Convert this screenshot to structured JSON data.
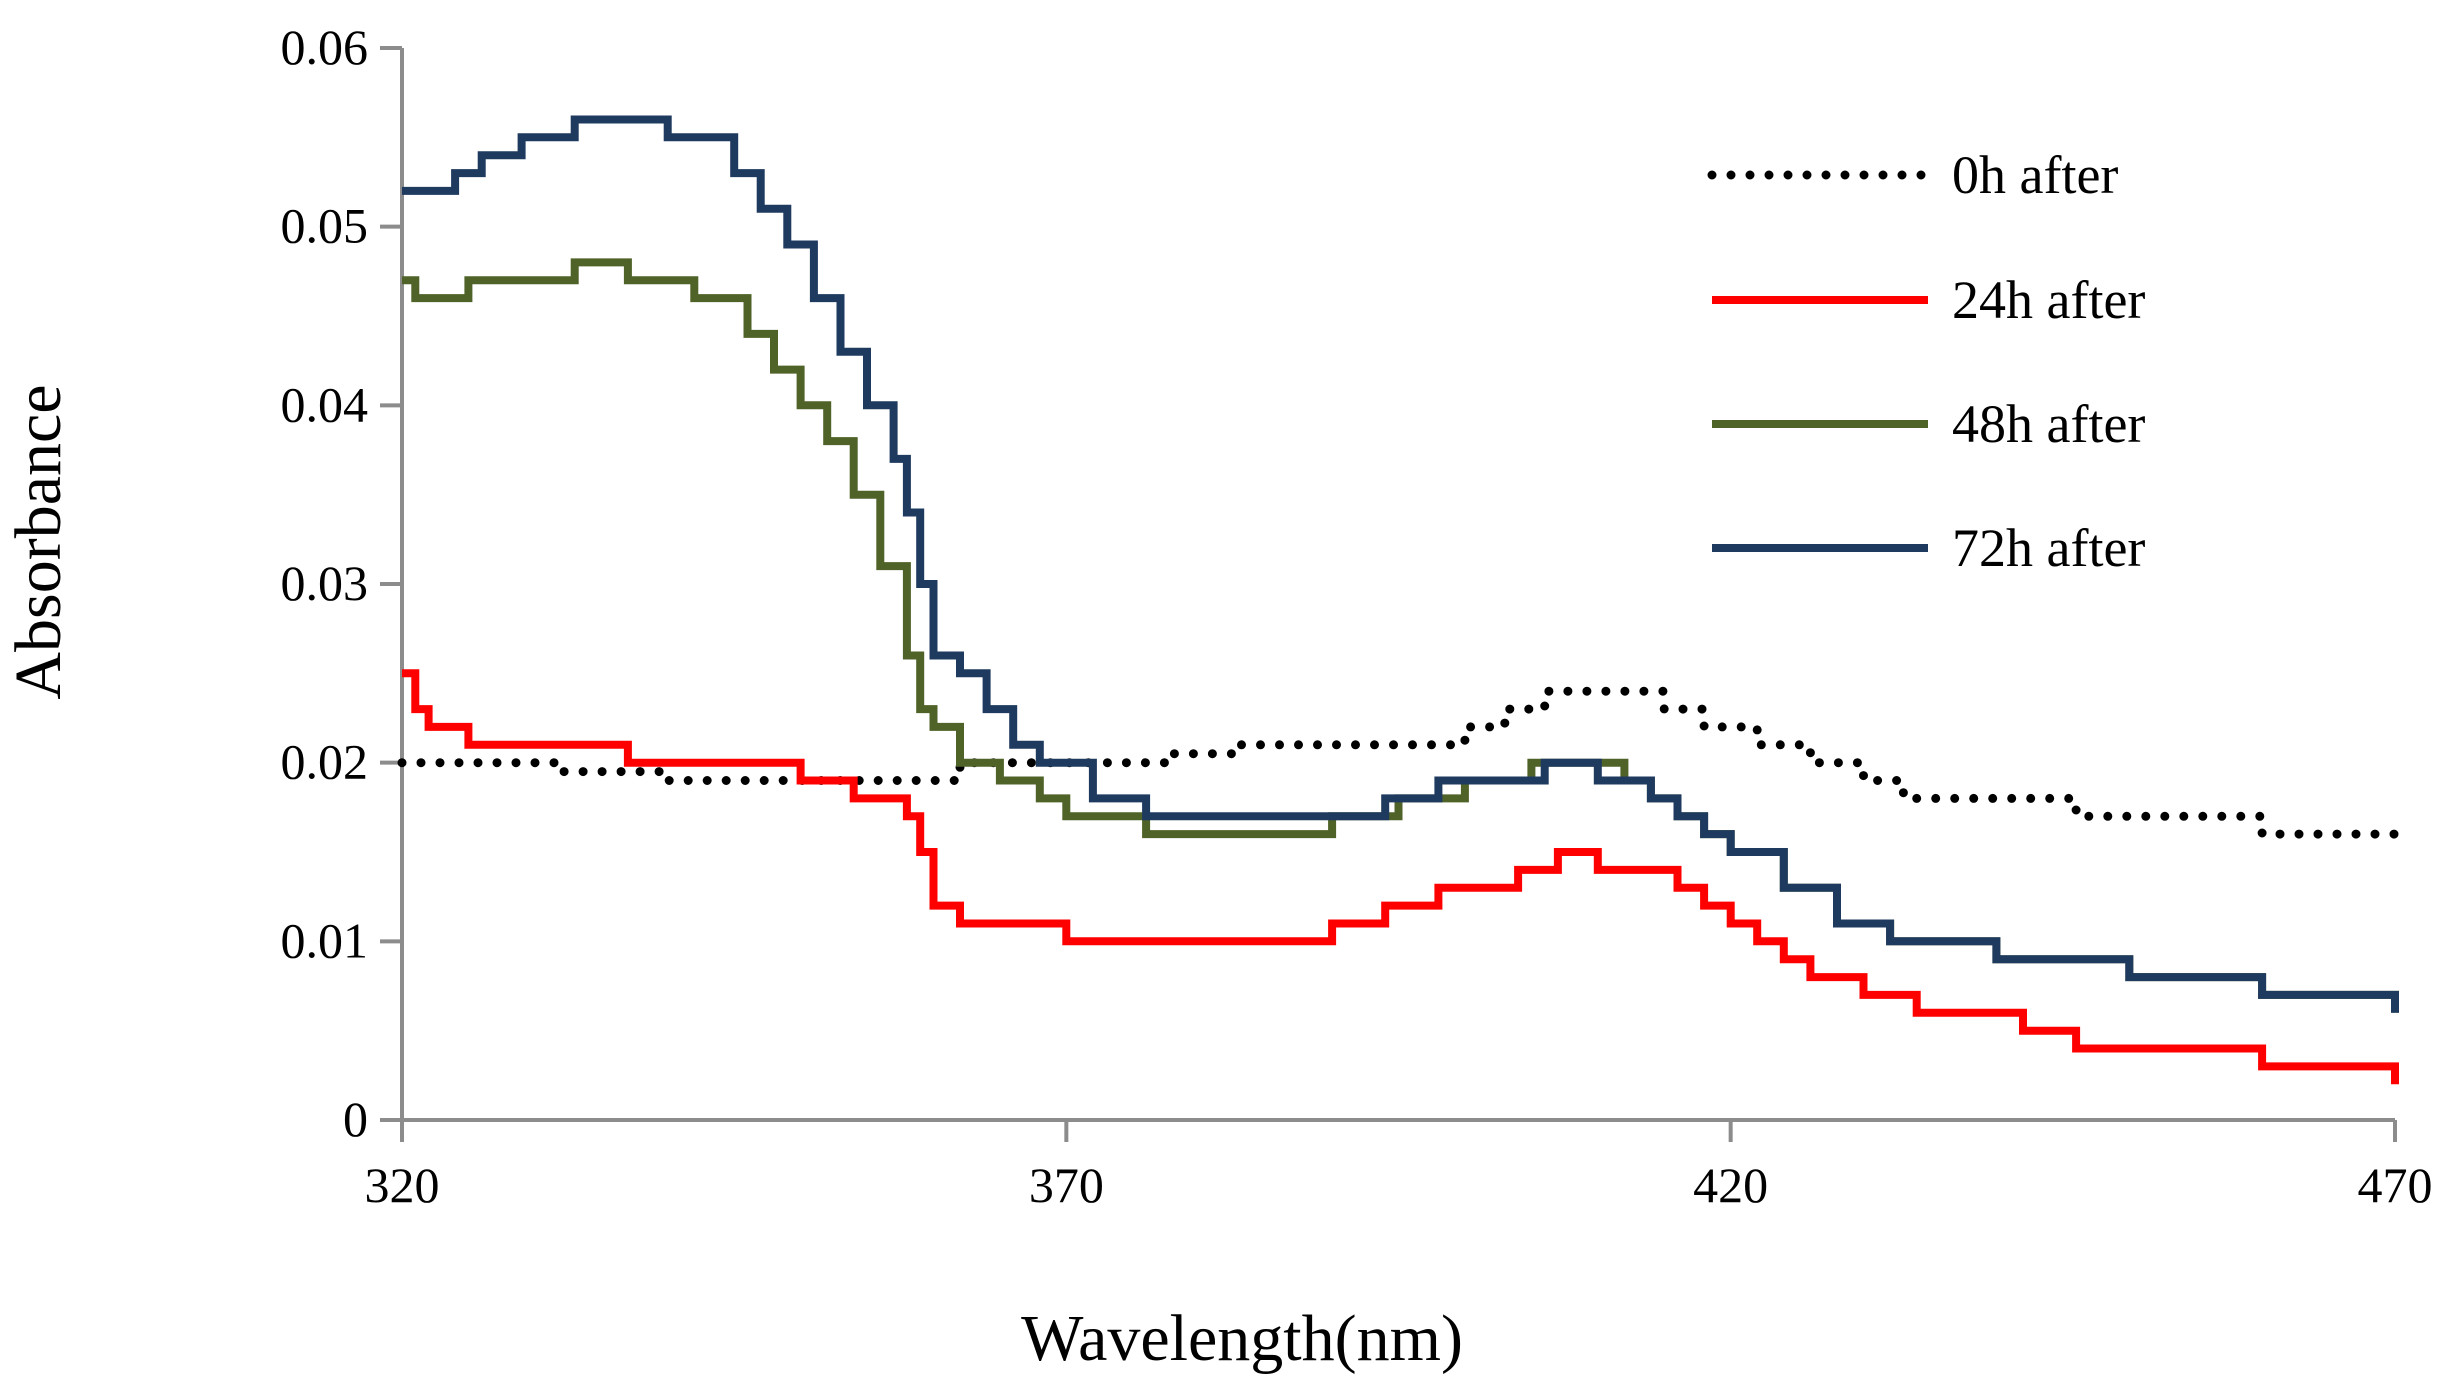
{
  "chart_data": {
    "type": "line",
    "title": "",
    "xlabel": "Wavelength(nm)",
    "ylabel": "Absorbance",
    "xlim": [
      320,
      470
    ],
    "ylim": [
      0,
      0.06
    ],
    "xticks": [
      320,
      370,
      420,
      470
    ],
    "xtick_labels": [
      "320",
      "370",
      "420",
      "470"
    ],
    "yticks": [
      0,
      0.01,
      0.02,
      0.03,
      0.04,
      0.05,
      0.06
    ],
    "ytick_labels": [
      "0",
      "0.01",
      "0.02",
      "0.03",
      "0.04",
      "0.05",
      "0.06"
    ],
    "grid": false,
    "legend_position": "top-right",
    "series": [
      {
        "name": "0h after",
        "color": "#000000",
        "style": "dotted",
        "x": [
          320,
          330,
          332,
          335,
          340,
          345,
          352,
          356,
          360,
          362,
          366,
          370,
          374,
          378,
          383,
          388,
          393,
          397,
          400,
          403,
          406,
          410,
          415,
          418,
          422,
          426,
          430,
          433,
          437,
          441,
          446,
          450,
          455,
          460,
          465,
          470
        ],
        "y": [
          0.02,
          0.02,
          0.0195,
          0.0195,
          0.019,
          0.019,
          0.019,
          0.019,
          0.019,
          0.02,
          0.02,
          0.02,
          0.02,
          0.0205,
          0.021,
          0.021,
          0.021,
          0.021,
          0.022,
          0.023,
          0.024,
          0.024,
          0.023,
          0.022,
          0.021,
          0.02,
          0.019,
          0.018,
          0.018,
          0.018,
          0.017,
          0.017,
          0.017,
          0.016,
          0.016,
          0.016
        ]
      },
      {
        "name": "24h after",
        "color": "#ff0000",
        "style": "solid",
        "x": [
          320,
          321,
          322,
          325,
          330,
          337,
          343,
          350,
          354,
          358,
          359,
          360,
          362,
          365,
          370,
          375,
          380,
          385,
          390,
          394,
          398,
          401,
          404,
          407,
          410,
          413,
          416,
          418,
          420,
          422,
          424,
          426,
          430,
          434,
          438,
          442,
          446,
          451,
          456,
          460,
          465,
          470
        ],
        "y": [
          0.025,
          0.023,
          0.022,
          0.021,
          0.021,
          0.02,
          0.02,
          0.019,
          0.018,
          0.017,
          0.015,
          0.012,
          0.011,
          0.011,
          0.01,
          0.01,
          0.01,
          0.01,
          0.011,
          0.012,
          0.013,
          0.013,
          0.014,
          0.015,
          0.014,
          0.014,
          0.013,
          0.012,
          0.011,
          0.01,
          0.009,
          0.008,
          0.007,
          0.006,
          0.006,
          0.005,
          0.004,
          0.004,
          0.004,
          0.003,
          0.003,
          0.002
        ]
      },
      {
        "name": "48h after",
        "color": "#4f6228",
        "style": "solid",
        "x": [
          320,
          321,
          325,
          328,
          333,
          337,
          342,
          346,
          348,
          350,
          352,
          354,
          356,
          358,
          359,
          360,
          362,
          365,
          368,
          370,
          372,
          376,
          380,
          385,
          390,
          395,
          400,
          405,
          408,
          410,
          412,
          414,
          416,
          418,
          420,
          424,
          428,
          432,
          436,
          440,
          445,
          450,
          455,
          460,
          465,
          470
        ],
        "y": [
          0.047,
          0.046,
          0.047,
          0.047,
          0.048,
          0.047,
          0.046,
          0.044,
          0.042,
          0.04,
          0.038,
          0.035,
          0.031,
          0.026,
          0.023,
          0.022,
          0.02,
          0.019,
          0.018,
          0.017,
          0.017,
          0.016,
          0.016,
          0.016,
          0.017,
          0.018,
          0.019,
          0.02,
          0.02,
          0.02,
          0.019,
          0.018,
          0.017,
          0.016,
          0.015,
          0.013,
          0.011,
          0.01,
          0.01,
          0.009,
          0.009,
          0.008,
          0.008,
          0.007,
          0.007,
          0.006
        ]
      },
      {
        "name": "72h after",
        "color": "#1f3a5f",
        "style": "solid",
        "x": [
          320,
          324,
          326,
          329,
          333,
          336,
          340,
          345,
          347,
          349,
          351,
          353,
          355,
          357,
          358,
          359,
          360,
          362,
          364,
          366,
          368,
          372,
          376,
          380,
          385,
          390,
          394,
          398,
          402,
          406,
          408,
          410,
          412,
          414,
          416,
          418,
          420,
          424,
          428,
          432,
          436,
          440,
          445,
          450,
          455,
          460,
          465,
          470
        ],
        "y": [
          0.052,
          0.053,
          0.054,
          0.055,
          0.056,
          0.056,
          0.055,
          0.053,
          0.051,
          0.049,
          0.046,
          0.043,
          0.04,
          0.037,
          0.034,
          0.03,
          0.026,
          0.025,
          0.023,
          0.021,
          0.02,
          0.018,
          0.017,
          0.017,
          0.017,
          0.017,
          0.018,
          0.019,
          0.019,
          0.02,
          0.02,
          0.019,
          0.019,
          0.018,
          0.017,
          0.016,
          0.015,
          0.013,
          0.011,
          0.01,
          0.01,
          0.009,
          0.009,
          0.008,
          0.008,
          0.007,
          0.007,
          0.006
        ]
      }
    ]
  }
}
